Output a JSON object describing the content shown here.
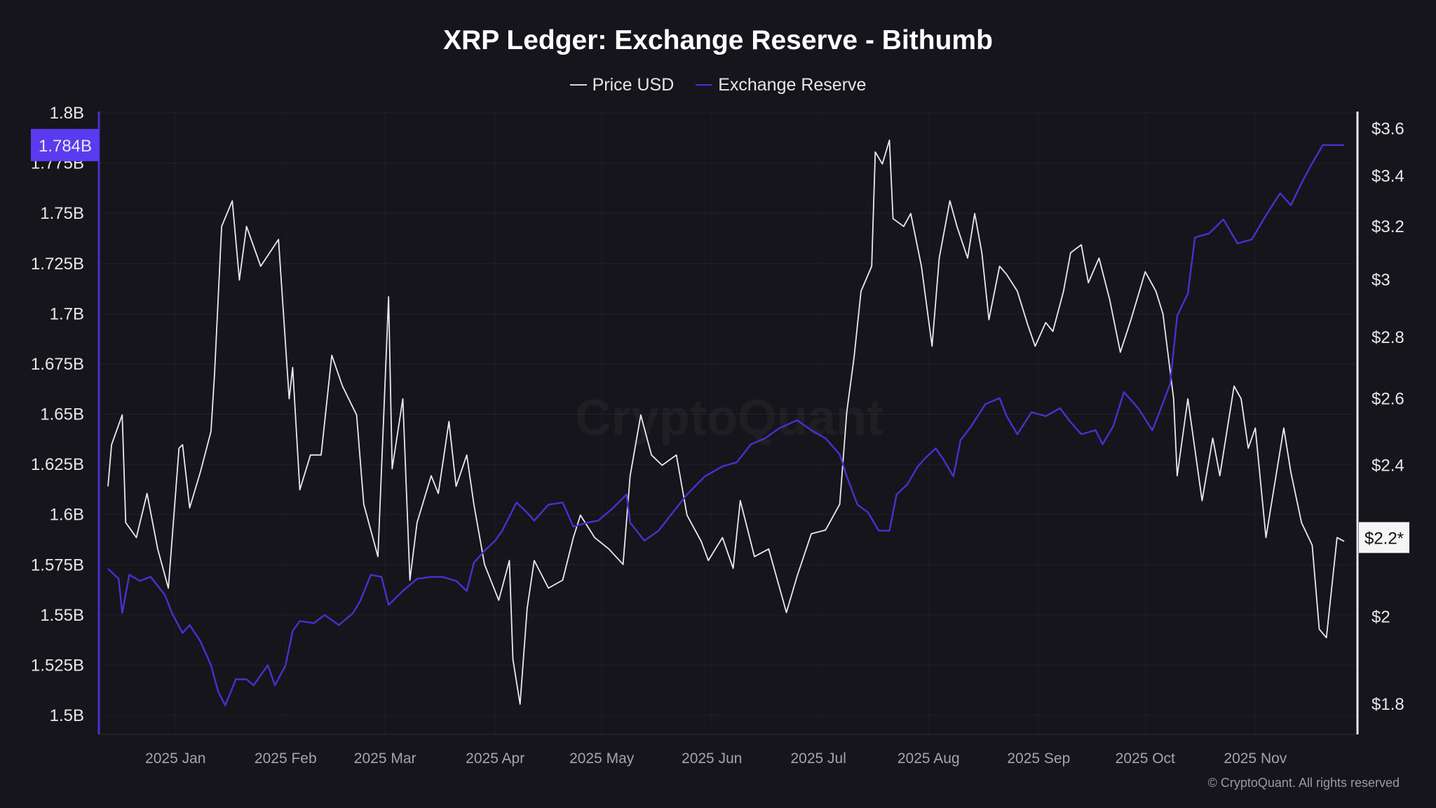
{
  "chart_data": {
    "type": "line",
    "title": "XRP Ledger: Exchange Reserve - Bithumb",
    "x_unit": "days since 2025-01-01",
    "xlim": [
      -19,
      329
    ],
    "x_ticks": [
      {
        "day": 0,
        "label": "2025 Jan"
      },
      {
        "day": 31,
        "label": "2025 Feb"
      },
      {
        "day": 59,
        "label": "2025 Mar"
      },
      {
        "day": 90,
        "label": "2025 Apr"
      },
      {
        "day": 120,
        "label": "2025 May"
      },
      {
        "day": 151,
        "label": "2025 Jun"
      },
      {
        "day": 181,
        "label": "2025 Jul"
      },
      {
        "day": 212,
        "label": "2025 Aug"
      },
      {
        "day": 243,
        "label": "2025 Sep"
      },
      {
        "day": 273,
        "label": "2025 Oct"
      },
      {
        "day": 304,
        "label": "2025 Nov"
      }
    ],
    "left_axis": {
      "ylim": [
        1.5,
        1.8
      ],
      "unit": "B",
      "ticks": [
        {
          "v": 1.8,
          "label": "1.8B"
        },
        {
          "v": 1.775,
          "label": "1.775B"
        },
        {
          "v": 1.75,
          "label": "1.75B"
        },
        {
          "v": 1.725,
          "label": "1.725B"
        },
        {
          "v": 1.7,
          "label": "1.7B"
        },
        {
          "v": 1.675,
          "label": "1.675B"
        },
        {
          "v": 1.65,
          "label": "1.65B"
        },
        {
          "v": 1.625,
          "label": "1.625B"
        },
        {
          "v": 1.6,
          "label": "1.6B"
        },
        {
          "v": 1.575,
          "label": "1.575B"
        },
        {
          "v": 1.55,
          "label": "1.55B"
        },
        {
          "v": 1.525,
          "label": "1.525B"
        },
        {
          "v": 1.5,
          "label": "1.5B"
        }
      ]
    },
    "right_axis": {
      "scale": "log",
      "ylim": [
        1.8,
        3.6
      ],
      "ticks": [
        {
          "v": 1.8,
          "label": "$1.8"
        },
        {
          "v": 2,
          "label": "$2"
        },
        {
          "v": 2.4,
          "label": "$2.4"
        },
        {
          "v": 2.6,
          "label": "$2.6"
        },
        {
          "v": 2.8,
          "label": "$2.8"
        },
        {
          "v": 3,
          "label": "$3"
        },
        {
          "v": 3.2,
          "label": "$3.2"
        },
        {
          "v": 3.4,
          "label": "$3.4"
        },
        {
          "v": 3.6,
          "label": "$3.6"
        }
      ]
    },
    "current_labels": {
      "reserve": "1.784B",
      "price": "$2.2*"
    },
    "series": [
      {
        "name": "Price USD",
        "axis": "right",
        "color": "#e9e9ee",
        "points": [
          [
            -19,
            2.34
          ],
          [
            -18,
            2.46
          ],
          [
            -15,
            2.55
          ],
          [
            -14,
            2.24
          ],
          [
            -11,
            2.2
          ],
          [
            -8,
            2.32
          ],
          [
            -5,
            2.17
          ],
          [
            -2,
            2.07
          ],
          [
            1,
            2.45
          ],
          [
            2,
            2.46
          ],
          [
            4,
            2.28
          ],
          [
            7,
            2.38
          ],
          [
            10,
            2.5
          ],
          [
            11,
            2.68
          ],
          [
            13,
            3.2
          ],
          [
            16,
            3.3
          ],
          [
            18,
            3.0
          ],
          [
            20,
            3.2
          ],
          [
            24,
            3.05
          ],
          [
            29,
            3.15
          ],
          [
            32,
            2.6
          ],
          [
            33,
            2.7
          ],
          [
            35,
            2.33
          ],
          [
            38,
            2.43
          ],
          [
            41,
            2.43
          ],
          [
            44,
            2.74
          ],
          [
            47,
            2.64
          ],
          [
            51,
            2.55
          ],
          [
            53,
            2.29
          ],
          [
            57,
            2.15
          ],
          [
            60,
            2.94
          ],
          [
            61,
            2.39
          ],
          [
            64,
            2.6
          ],
          [
            66,
            2.09
          ],
          [
            68,
            2.24
          ],
          [
            72,
            2.37
          ],
          [
            74,
            2.32
          ],
          [
            77,
            2.53
          ],
          [
            79,
            2.34
          ],
          [
            82,
            2.43
          ],
          [
            84,
            2.29
          ],
          [
            87,
            2.13
          ],
          [
            91,
            2.04
          ],
          [
            94,
            2.14
          ],
          [
            95,
            1.9
          ],
          [
            97,
            1.8
          ],
          [
            99,
            2.02
          ],
          [
            101,
            2.14
          ],
          [
            105,
            2.07
          ],
          [
            109,
            2.09
          ],
          [
            112,
            2.2
          ],
          [
            114,
            2.26
          ],
          [
            118,
            2.2
          ],
          [
            122,
            2.17
          ],
          [
            126,
            2.13
          ],
          [
            128,
            2.37
          ],
          [
            131,
            2.55
          ],
          [
            134,
            2.43
          ],
          [
            137,
            2.4
          ],
          [
            141,
            2.43
          ],
          [
            144,
            2.26
          ],
          [
            148,
            2.19
          ],
          [
            150,
            2.14
          ],
          [
            154,
            2.2
          ],
          [
            157,
            2.12
          ],
          [
            159,
            2.3
          ],
          [
            163,
            2.15
          ],
          [
            167,
            2.17
          ],
          [
            172,
            2.01
          ],
          [
            175,
            2.1
          ],
          [
            179,
            2.21
          ],
          [
            183,
            2.22
          ],
          [
            187,
            2.29
          ],
          [
            189,
            2.56
          ],
          [
            191,
            2.73
          ],
          [
            193,
            2.96
          ],
          [
            196,
            3.05
          ],
          [
            197,
            3.5
          ],
          [
            199,
            3.45
          ],
          [
            201,
            3.55
          ],
          [
            202,
            3.23
          ],
          [
            205,
            3.2
          ],
          [
            207,
            3.25
          ],
          [
            210,
            3.05
          ],
          [
            213,
            2.77
          ],
          [
            215,
            3.08
          ],
          [
            218,
            3.3
          ],
          [
            220,
            3.2
          ],
          [
            223,
            3.08
          ],
          [
            225,
            3.25
          ],
          [
            227,
            3.1
          ],
          [
            229,
            2.86
          ],
          [
            232,
            3.05
          ],
          [
            234,
            3.02
          ],
          [
            237,
            2.96
          ],
          [
            240,
            2.84
          ],
          [
            242,
            2.77
          ],
          [
            245,
            2.85
          ],
          [
            247,
            2.82
          ],
          [
            250,
            2.96
          ],
          [
            252,
            3.1
          ],
          [
            255,
            3.13
          ],
          [
            257,
            2.99
          ],
          [
            260,
            3.08
          ],
          [
            263,
            2.93
          ],
          [
            266,
            2.75
          ],
          [
            269,
            2.86
          ],
          [
            273,
            3.03
          ],
          [
            276,
            2.96
          ],
          [
            278,
            2.88
          ],
          [
            281,
            2.6
          ],
          [
            282,
            2.37
          ],
          [
            285,
            2.6
          ],
          [
            289,
            2.3
          ],
          [
            292,
            2.48
          ],
          [
            294,
            2.37
          ],
          [
            298,
            2.64
          ],
          [
            300,
            2.6
          ],
          [
            302,
            2.45
          ],
          [
            304,
            2.51
          ],
          [
            307,
            2.2
          ],
          [
            309,
            2.32
          ],
          [
            312,
            2.51
          ],
          [
            314,
            2.38
          ],
          [
            317,
            2.24
          ],
          [
            320,
            2.18
          ],
          [
            322,
            1.97
          ],
          [
            324,
            1.95
          ],
          [
            327,
            2.2
          ],
          [
            329,
            2.19
          ]
        ]
      },
      {
        "name": "Exchange Reserve",
        "axis": "left",
        "color": "#4a30d0",
        "points": [
          [
            -19,
            1.573
          ],
          [
            -16,
            1.568
          ],
          [
            -15,
            1.551
          ],
          [
            -13,
            1.57
          ],
          [
            -10,
            1.567
          ],
          [
            -7,
            1.569
          ],
          [
            -3,
            1.56
          ],
          [
            -1,
            1.551
          ],
          [
            2,
            1.541
          ],
          [
            4,
            1.545
          ],
          [
            7,
            1.537
          ],
          [
            10,
            1.525
          ],
          [
            12,
            1.512
          ],
          [
            14,
            1.505
          ],
          [
            17,
            1.518
          ],
          [
            20,
            1.518
          ],
          [
            22,
            1.515
          ],
          [
            26,
            1.525
          ],
          [
            28,
            1.515
          ],
          [
            31,
            1.525
          ],
          [
            33,
            1.542
          ],
          [
            35,
            1.547
          ],
          [
            39,
            1.546
          ],
          [
            42,
            1.55
          ],
          [
            46,
            1.545
          ],
          [
            50,
            1.551
          ],
          [
            52,
            1.557
          ],
          [
            55,
            1.57
          ],
          [
            58,
            1.569
          ],
          [
            60,
            1.555
          ],
          [
            64,
            1.562
          ],
          [
            68,
            1.568
          ],
          [
            72,
            1.569
          ],
          [
            75,
            1.569
          ],
          [
            79,
            1.567
          ],
          [
            82,
            1.562
          ],
          [
            84,
            1.576
          ],
          [
            87,
            1.582
          ],
          [
            90,
            1.587
          ],
          [
            92,
            1.592
          ],
          [
            96,
            1.606
          ],
          [
            99,
            1.601
          ],
          [
            101,
            1.597
          ],
          [
            105,
            1.605
          ],
          [
            109,
            1.606
          ],
          [
            112,
            1.594
          ],
          [
            116,
            1.596
          ],
          [
            119,
            1.597
          ],
          [
            123,
            1.603
          ],
          [
            127,
            1.61
          ],
          [
            128,
            1.596
          ],
          [
            132,
            1.587
          ],
          [
            136,
            1.592
          ],
          [
            140,
            1.601
          ],
          [
            144,
            1.61
          ],
          [
            149,
            1.619
          ],
          [
            154,
            1.624
          ],
          [
            158,
            1.626
          ],
          [
            162,
            1.635
          ],
          [
            166,
            1.638
          ],
          [
            170,
            1.643
          ],
          [
            175,
            1.647
          ],
          [
            179,
            1.642
          ],
          [
            183,
            1.638
          ],
          [
            187,
            1.63
          ],
          [
            189,
            1.619
          ],
          [
            192,
            1.605
          ],
          [
            195,
            1.601
          ],
          [
            198,
            1.592
          ],
          [
            201,
            1.592
          ],
          [
            203,
            1.61
          ],
          [
            206,
            1.615
          ],
          [
            209,
            1.624
          ],
          [
            211,
            1.628
          ],
          [
            214,
            1.633
          ],
          [
            216,
            1.628
          ],
          [
            219,
            1.619
          ],
          [
            221,
            1.637
          ],
          [
            224,
            1.644
          ],
          [
            228,
            1.655
          ],
          [
            232,
            1.658
          ],
          [
            234,
            1.649
          ],
          [
            237,
            1.64
          ],
          [
            241,
            1.651
          ],
          [
            245,
            1.649
          ],
          [
            249,
            1.653
          ],
          [
            252,
            1.646
          ],
          [
            255,
            1.64
          ],
          [
            259,
            1.642
          ],
          [
            261,
            1.635
          ],
          [
            264,
            1.644
          ],
          [
            267,
            1.661
          ],
          [
            271,
            1.653
          ],
          [
            275,
            1.642
          ],
          [
            277,
            1.651
          ],
          [
            280,
            1.665
          ],
          [
            282,
            1.699
          ],
          [
            285,
            1.71
          ],
          [
            287,
            1.738
          ],
          [
            291,
            1.74
          ],
          [
            295,
            1.747
          ],
          [
            299,
            1.735
          ],
          [
            303,
            1.737
          ],
          [
            307,
            1.749
          ],
          [
            311,
            1.76
          ],
          [
            314,
            1.754
          ],
          [
            317,
            1.765
          ],
          [
            320,
            1.775
          ],
          [
            323,
            1.784
          ],
          [
            327,
            1.784
          ],
          [
            329,
            1.784
          ]
        ]
      }
    ],
    "legend": {
      "position": "top-center",
      "items": [
        "Price USD",
        "Exchange Reserve"
      ]
    },
    "watermark": "CryptoQuant",
    "copyright": "© CryptoQuant. All rights reserved"
  }
}
